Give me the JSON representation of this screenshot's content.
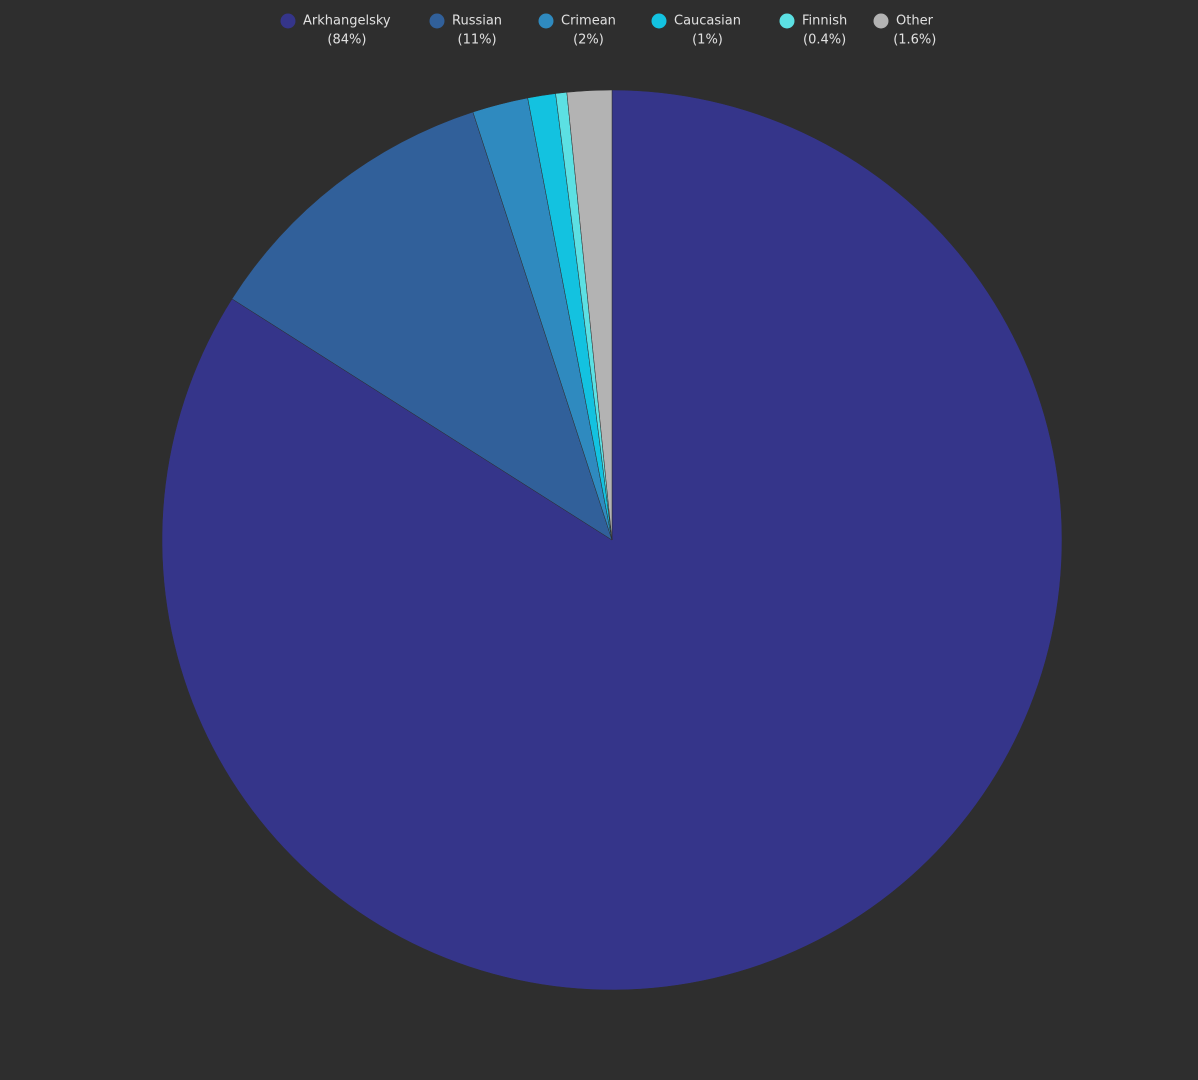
{
  "chart_data": {
    "type": "pie",
    "categories": [
      "Arkhangelsky",
      "Russian",
      "Crimean",
      "Caucasian",
      "Finnish",
      "Other"
    ],
    "values": [
      84,
      11,
      2,
      1,
      0.4,
      1.6
    ],
    "value_labels": [
      "(84%)",
      "(11%)",
      "(2%)",
      "(1%)",
      "(0.4%)",
      "(1.6%)"
    ],
    "colors": [
      "#35358a",
      "#31609a",
      "#2f8abf",
      "#13c2e0",
      "#5ce0e3",
      "#b3b3b3"
    ],
    "legend": "top"
  }
}
